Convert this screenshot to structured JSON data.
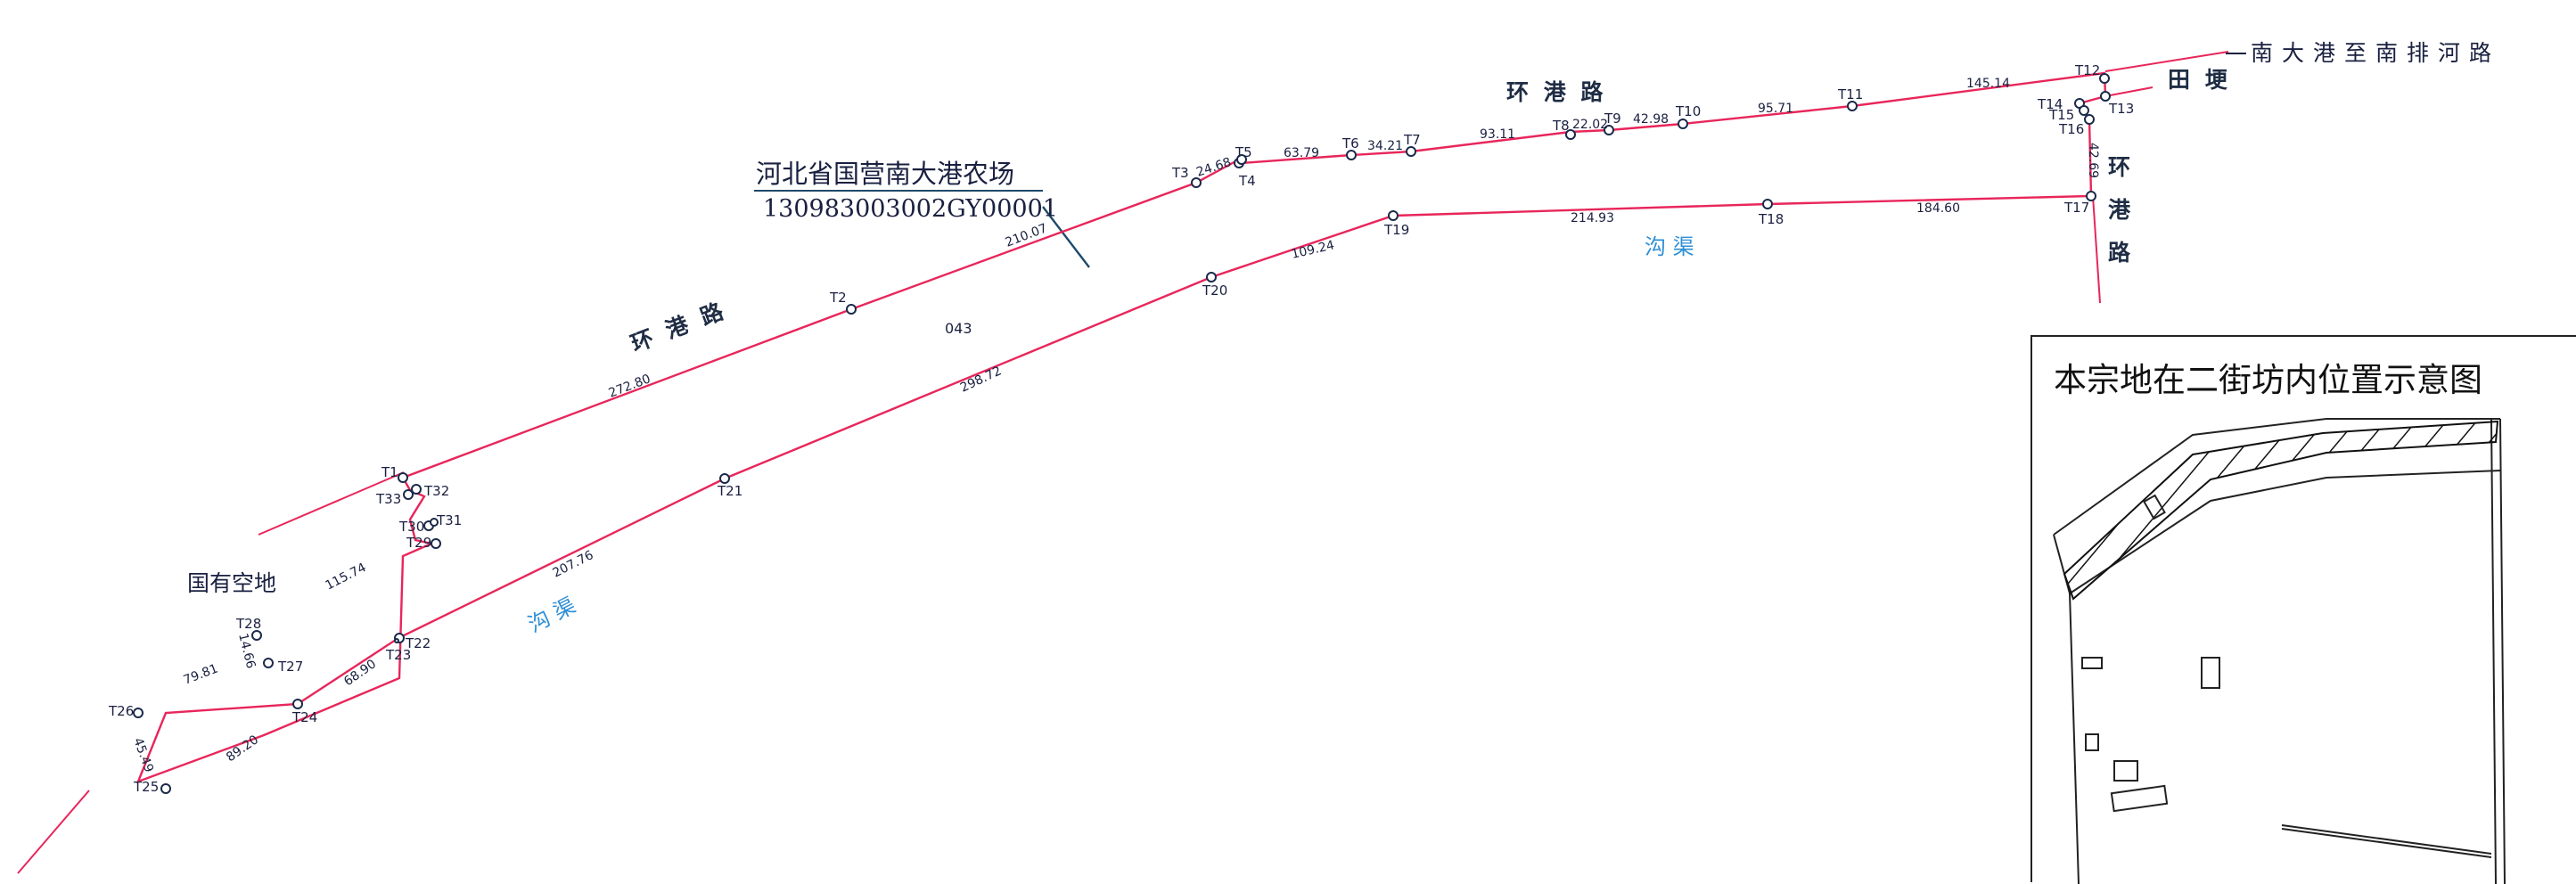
{
  "farm": {
    "name": "河北省国营南大港农场",
    "code": "130983003002GY00001"
  },
  "parcel_no": "043",
  "labels": {
    "road_left": "环 港 路",
    "road_top": "环 港 路",
    "road_right": [
      "环",
      "港",
      "路"
    ],
    "ditch_top": "沟 渠",
    "ditch_bottom": "沟 渠",
    "state_land": "国有空地",
    "field_ridge": "田 埂",
    "far_road": "南大港至南排河路"
  },
  "points": [
    {
      "id": "T1"
    },
    {
      "id": "T2"
    },
    {
      "id": "T3"
    },
    {
      "id": "T4"
    },
    {
      "id": "T5"
    },
    {
      "id": "T6"
    },
    {
      "id": "T7"
    },
    {
      "id": "T8"
    },
    {
      "id": "T9"
    },
    {
      "id": "T10"
    },
    {
      "id": "T11"
    },
    {
      "id": "T12"
    },
    {
      "id": "T13"
    },
    {
      "id": "T14"
    },
    {
      "id": "T15"
    },
    {
      "id": "T16"
    },
    {
      "id": "T17"
    },
    {
      "id": "T18"
    },
    {
      "id": "T19"
    },
    {
      "id": "T20"
    },
    {
      "id": "T21"
    },
    {
      "id": "T22"
    },
    {
      "id": "T23"
    },
    {
      "id": "T24"
    },
    {
      "id": "T25"
    },
    {
      "id": "T26"
    },
    {
      "id": "T27"
    },
    {
      "id": "T28"
    },
    {
      "id": "T29"
    },
    {
      "id": "T30"
    },
    {
      "id": "T31"
    },
    {
      "id": "T32"
    },
    {
      "id": "T33"
    }
  ],
  "distances": [
    "272.80",
    "210.07",
    "24.68",
    "63.79",
    "34.21",
    "93.11",
    "22.02",
    "42.98",
    "95.71",
    "145.14",
    "42.69",
    "184.60",
    "214.93",
    "109.24",
    "298.72",
    "207.76",
    "68.90",
    "89.20",
    "45.49",
    "79.81",
    "14.66",
    "115.74"
  ],
  "inset": {
    "title": "本宗地在二街坊内位置示意图"
  }
}
